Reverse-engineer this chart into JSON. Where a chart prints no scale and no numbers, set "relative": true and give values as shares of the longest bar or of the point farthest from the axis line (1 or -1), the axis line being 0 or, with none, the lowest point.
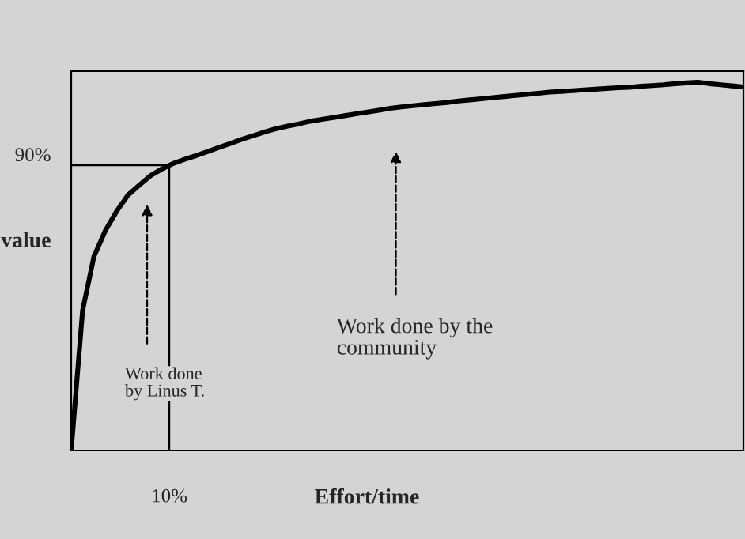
{
  "chart_data": {
    "type": "line",
    "relative": true,
    "xlabel": "Effort/time",
    "ylabel": "value",
    "categories": [
      null,
      null,
      null,
      null,
      null,
      null,
      null,
      null,
      null,
      null,
      null,
      null,
      null,
      null,
      null,
      null,
      null,
      null,
      null,
      null,
      null,
      null,
      null,
      null,
      null,
      null,
      null,
      null,
      null,
      null,
      null,
      null,
      null,
      null,
      null,
      null,
      null,
      null,
      null,
      null,
      null,
      null,
      null,
      null,
      null,
      null,
      null,
      null,
      null,
      null,
      null,
      null,
      null,
      null,
      null,
      null,
      null,
      null,
      null,
      null
    ],
    "series": [
      {
        "color": "#000000",
        "values": [
          0,
          0.38,
          0.527,
          0.597,
          0.65,
          0.694,
          0.721,
          0.747,
          0.765,
          0.78,
          0.791,
          0.801,
          0.812,
          0.823,
          0.834,
          0.845,
          0.855,
          0.865,
          0.874,
          0.881,
          0.887,
          0.894,
          0.899,
          0.904,
          0.909,
          0.914,
          0.919,
          0.924,
          0.929,
          0.933,
          0.936,
          0.939,
          0.942,
          0.945,
          0.949,
          0.952,
          0.955,
          0.958,
          0.961,
          0.964,
          0.967,
          0.97,
          0.973,
          0.975,
          0.977,
          0.979,
          0.981,
          0.983,
          0.985,
          0.986,
          0.989,
          0.991,
          0.993,
          0.996,
          0.998,
          1,
          0.996,
          0.993,
          0.99,
          0.987
        ]
      }
    ],
    "annotations": [
      "90%",
      "10%",
      "Work done\nby Linus T.",
      "Work done by the\ncommunity"
    ],
    "grid": false,
    "legend": false,
    "marker": "none",
    "line_style": "solid"
  }
}
